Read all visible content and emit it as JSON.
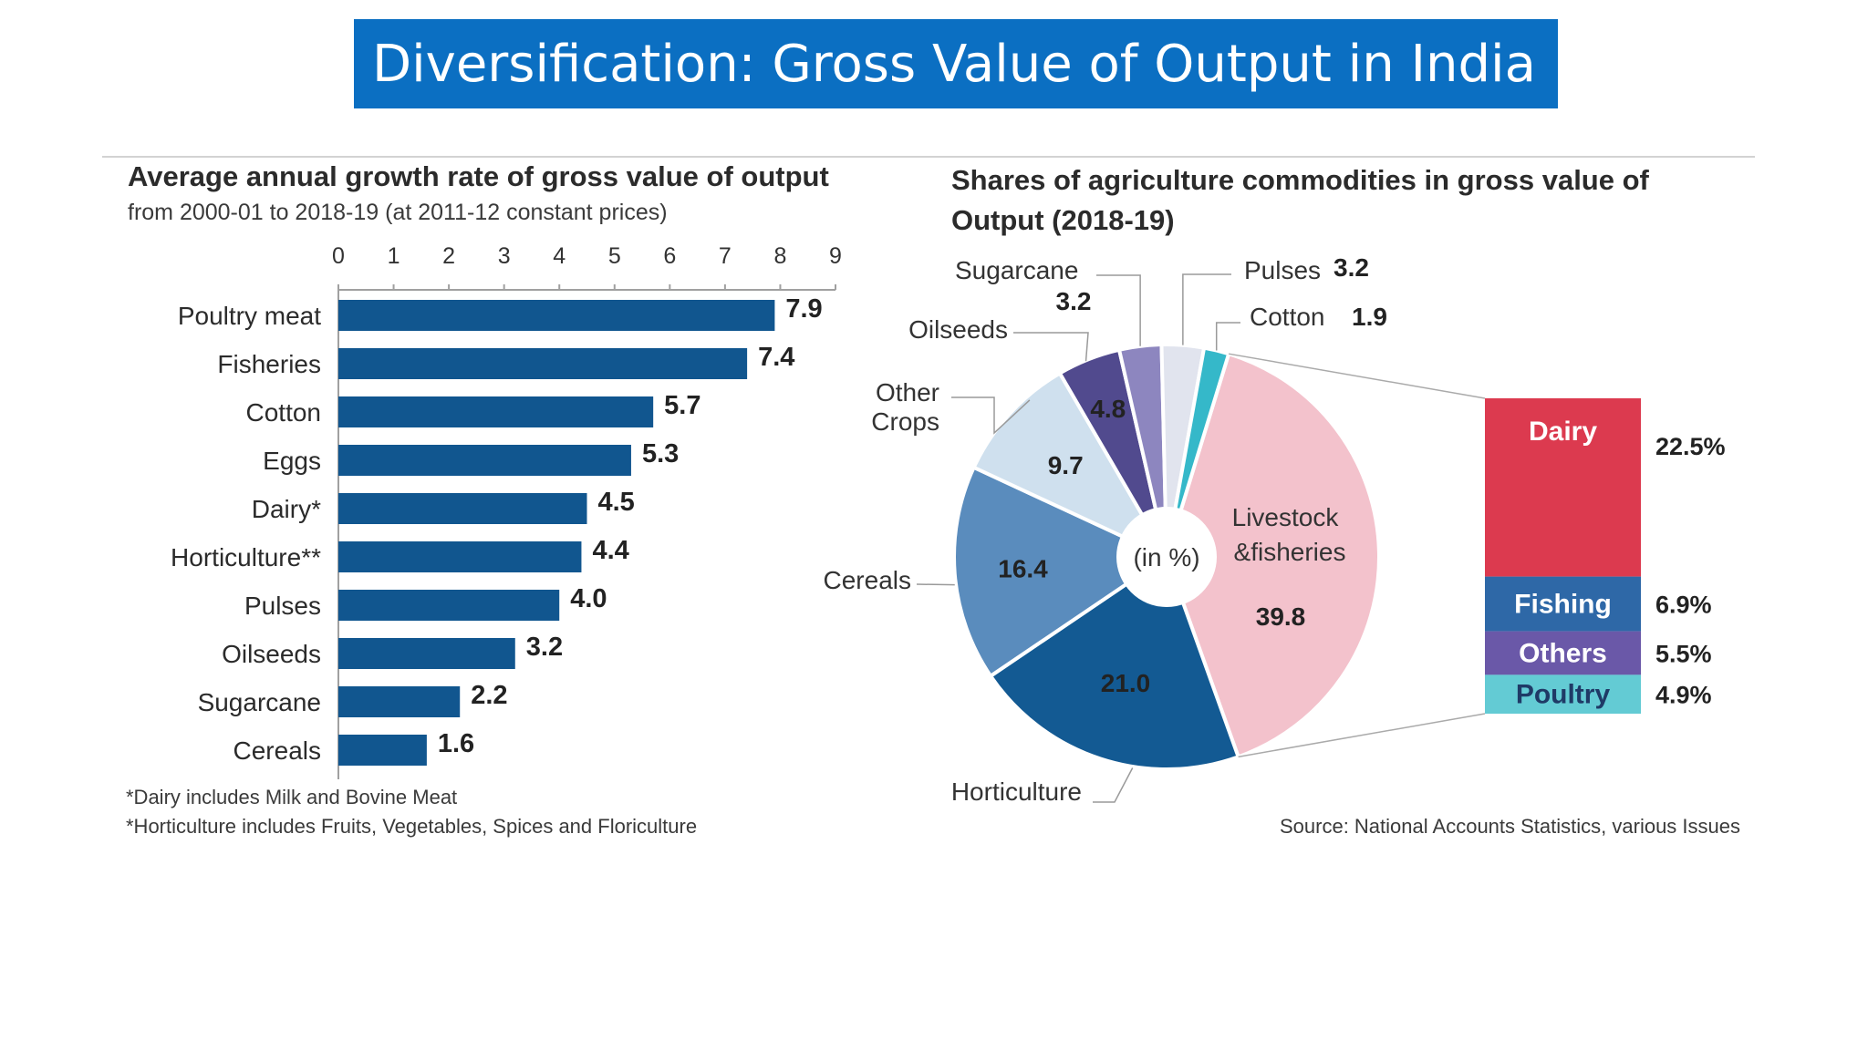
{
  "page": {
    "title": "Diversification: Gross Value of Output in India",
    "footnotes": [
      "*Dairy includes Milk and Bovine Meat",
      "*Horticulture includes Fruits, Vegetables, Spices and Floriculture"
    ],
    "source": "Source: National Accounts Statistics, various Issues"
  },
  "colors": {
    "banner": "#0b6fc2",
    "bar": "#11568f",
    "pie": {
      "Livestock &fisheries": "#f3c2cc",
      "Horticulture": "#135a93",
      "Cereals": "#5a8cbd",
      "Other Crops": "#cfe0ee",
      "Oilseeds": "#514a8e",
      "Sugarcane": "#8d86bf",
      "Pulses": "#e1e4ee",
      "Cotton": "#35b8c9"
    },
    "stack": {
      "Dairy": "#dc3a4f",
      "Fishing": "#2e68a7",
      "Others": "#6a58a8",
      "Poultry": "#63cbd4"
    }
  },
  "chart_data": [
    {
      "type": "bar",
      "orientation": "horizontal",
      "title": "Average annual growth rate of gross value of output",
      "subtitle": "from 2000-01 to 2018-19 (at 2011-12 constant prices)",
      "categories": [
        "Poultry meat",
        "Fisheries",
        "Cotton",
        "Eggs",
        "Dairy*",
        "Horticulture**",
        "Pulses",
        "Oilseeds",
        "Sugarcane",
        "Cereals"
      ],
      "values": [
        7.9,
        7.4,
        5.7,
        5.3,
        4.5,
        4.4,
        4.0,
        3.2,
        2.2,
        1.6
      ],
      "value_labels": [
        "7.9",
        "7.4",
        "5.7",
        "5.3",
        "4.5",
        "4.4",
        "4.0",
        "3.2",
        "2.2",
        "1.6"
      ],
      "xlim": [
        0,
        9
      ],
      "xticks": [
        "0",
        "1",
        "2",
        "3",
        "4",
        "5",
        "6",
        "7",
        "8",
        "9"
      ],
      "axis_position": "top"
    },
    {
      "type": "pie",
      "title": "Shares of agriculture commodities in gross value of Output (2018-19)",
      "center_label": "(in %)",
      "slices": [
        {
          "label": "Livestock &fisheries",
          "value": 39.8,
          "value_label": "39.8"
        },
        {
          "label": "Horticulture",
          "value": 21.0,
          "value_label": "21.0"
        },
        {
          "label": "Cereals",
          "value": 16.4,
          "value_label": "16.4"
        },
        {
          "label": "Other Crops",
          "value": 9.7,
          "value_label": "9.7"
        },
        {
          "label": "Oilseeds",
          "value": 4.8,
          "value_label": "4.8"
        },
        {
          "label": "Sugarcane",
          "value": 3.2,
          "value_label": "3.2"
        },
        {
          "label": "Pulses",
          "value": 3.2,
          "value_label": "3.2"
        },
        {
          "label": "Cotton",
          "value": 1.9,
          "value_label": "1.9"
        }
      ],
      "breakdown": {
        "of": "Livestock &fisheries",
        "type": "stacked-bar",
        "segments": [
          {
            "label": "Dairy",
            "value": 22.5,
            "value_label": "22.5%"
          },
          {
            "label": "Fishing",
            "value": 6.9,
            "value_label": "6.9%"
          },
          {
            "label": "Others",
            "value": 5.5,
            "value_label": "5.5%"
          },
          {
            "label": "Poultry",
            "value": 4.9,
            "value_label": "4.9%"
          }
        ]
      }
    }
  ]
}
